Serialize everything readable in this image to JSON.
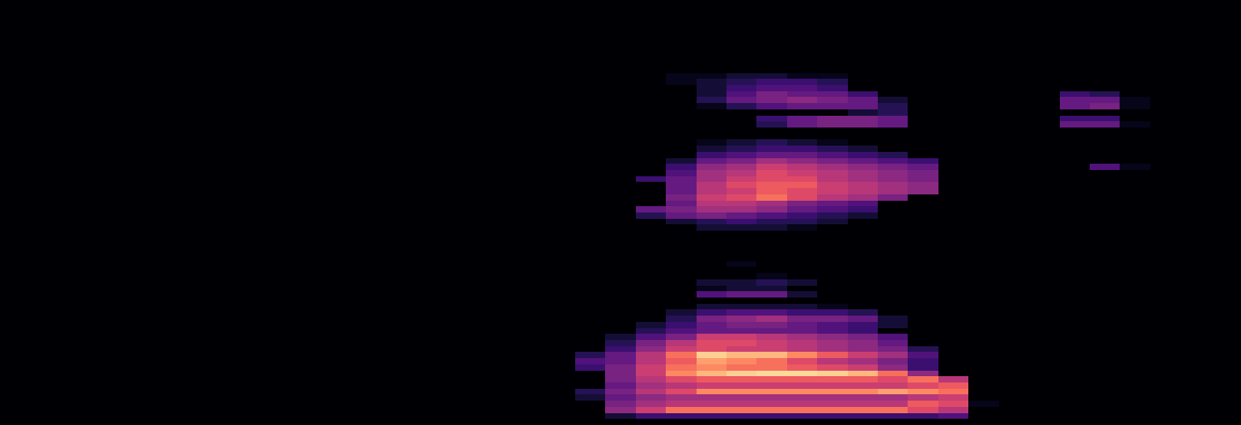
{
  "chart_data": {
    "type": "heatmap",
    "color": "magma",
    "tick_labels": false,
    "xlim": [
      0,
      41
    ],
    "ylim": [
      0,
      70
    ],
    "zlim": [
      0,
      1
    ],
    "x": [
      19.5,
      20.5,
      21.5,
      22.5,
      23.5,
      24.5,
      25.5,
      26.5,
      27.5,
      28.5,
      29.5,
      30.5,
      31.5,
      32.5,
      33.5,
      34.5,
      35.5,
      36.5,
      37.5
    ],
    "y": [
      0.5,
      1.5,
      2.5,
      3.5,
      4.5,
      5.5,
      6.5,
      7.5,
      8.5,
      9.5,
      10.5,
      11.5,
      12.5,
      13.5,
      14.5,
      15.5,
      16.5,
      17.5,
      18.5,
      19.5,
      20.5,
      21.5,
      22.5,
      23.5,
      24.5,
      25.5,
      26.5,
      27.5,
      28.5,
      29.5,
      30.5,
      31.5,
      32.5,
      33.5,
      34.5,
      35.5,
      36.5,
      37.5,
      38.5,
      39.5,
      40.5,
      41.5,
      42.5,
      43.5,
      44.5,
      45.5,
      46.5,
      47.5,
      48.5,
      49.5,
      50.5,
      51.5,
      52.5,
      53.5,
      54.5,
      55.5,
      56.5,
      57.5
    ],
    "z": [
      [
        0,
        0,
        0,
        0,
        0,
        0,
        0,
        0,
        0,
        0,
        0,
        0,
        0,
        0,
        0,
        0,
        0,
        0,
        0
      ],
      [
        0,
        0.1,
        0.2,
        0.2,
        0.2,
        0.2,
        0.2,
        0.2,
        0.2,
        0.2,
        0.2,
        0.2,
        0.25,
        0,
        0,
        0,
        0,
        0,
        0
      ],
      [
        0,
        0.4,
        0.55,
        0.7,
        0.7,
        0.7,
        0.7,
        0.7,
        0.7,
        0.7,
        0.7,
        0.6,
        0.5,
        0,
        0,
        0,
        0,
        0,
        0
      ],
      [
        0,
        0.35,
        0.45,
        0.5,
        0.5,
        0.5,
        0.5,
        0.5,
        0.5,
        0.5,
        0.5,
        0.65,
        0.6,
        0.05,
        0,
        0,
        0,
        0,
        0
      ],
      [
        0.1,
        0.3,
        0.4,
        0.45,
        0.45,
        0.45,
        0.45,
        0.45,
        0.45,
        0.45,
        0.45,
        0.5,
        0.55,
        0,
        0,
        0,
        0,
        0,
        0
      ],
      [
        0.15,
        0.35,
        0.5,
        0.6,
        0.75,
        0.75,
        0.75,
        0.75,
        0.75,
        0.75,
        0.8,
        0.75,
        0.7,
        0,
        0,
        0,
        0,
        0,
        0
      ],
      [
        0,
        0.3,
        0.45,
        0.5,
        0.55,
        0.55,
        0.55,
        0.55,
        0.55,
        0.55,
        0.55,
        0.6,
        0.65,
        0,
        0,
        0,
        0,
        0,
        0
      ],
      [
        0,
        0.35,
        0.5,
        0.6,
        0.65,
        0.65,
        0.65,
        0.65,
        0.65,
        0.65,
        0.6,
        0.7,
        0.5,
        0,
        0,
        0,
        0,
        0,
        0
      ],
      [
        0,
        0.35,
        0.55,
        0.75,
        0.85,
        0.9,
        0.92,
        0.92,
        0.9,
        0.85,
        0.7,
        0.4,
        0,
        0,
        0,
        0,
        0,
        0,
        0
      ],
      [
        0.2,
        0.35,
        0.55,
        0.7,
        0.75,
        0.7,
        0.7,
        0.65,
        0.6,
        0.55,
        0.4,
        0.2,
        0,
        0,
        0,
        0,
        0,
        0,
        0
      ],
      [
        0.25,
        0.3,
        0.5,
        0.65,
        0.8,
        0.75,
        0.7,
        0.6,
        0.5,
        0.45,
        0.35,
        0.2,
        0,
        0,
        0,
        0,
        0,
        0,
        0
      ],
      [
        0.15,
        0.3,
        0.5,
        0.7,
        0.9,
        0.85,
        0.85,
        0.75,
        0.65,
        0.55,
        0.45,
        0.25,
        0,
        0,
        0,
        0,
        0,
        0,
        0
      ],
      [
        0,
        0.2,
        0.4,
        0.55,
        0.6,
        0.55,
        0.55,
        0.5,
        0.45,
        0.4,
        0.35,
        0.15,
        0,
        0,
        0,
        0,
        0,
        0,
        0
      ],
      [
        0,
        0.15,
        0.35,
        0.5,
        0.6,
        0.6,
        0.55,
        0.5,
        0.45,
        0.4,
        0.3,
        0,
        0,
        0,
        0,
        0,
        0,
        0,
        0
      ],
      [
        0,
        0.1,
        0.25,
        0.35,
        0.55,
        0.55,
        0.5,
        0.45,
        0.4,
        0.35,
        0.25,
        0,
        0,
        0,
        0,
        0,
        0,
        0,
        0
      ],
      [
        0,
        0,
        0.15,
        0.25,
        0.3,
        0.3,
        0.3,
        0.3,
        0.25,
        0.2,
        0,
        0,
        0,
        0,
        0,
        0,
        0,
        0,
        0
      ],
      [
        0,
        0,
        0.1,
        0.2,
        0.3,
        0.35,
        0.35,
        0.3,
        0.25,
        0.2,
        0.1,
        0,
        0,
        0,
        0,
        0,
        0,
        0,
        0
      ],
      [
        0,
        0,
        0,
        0.15,
        0.35,
        0.4,
        0.45,
        0.35,
        0.35,
        0.3,
        0.1,
        0,
        0,
        0,
        0,
        0,
        0,
        0,
        0
      ],
      [
        0,
        0,
        0,
        0.1,
        0.2,
        0.25,
        0.25,
        0.2,
        0.2,
        0.15,
        0,
        0,
        0,
        0,
        0,
        0,
        0,
        0,
        0
      ],
      [
        0,
        0,
        0,
        0,
        0.1,
        0.1,
        0.1,
        0.1,
        0.05,
        0,
        0,
        0,
        0,
        0,
        0,
        0,
        0,
        0,
        0
      ],
      [
        0,
        0,
        0,
        0,
        0,
        0,
        0,
        0,
        0,
        0,
        0,
        0,
        0,
        0,
        0,
        0,
        0,
        0,
        0
      ],
      [
        0,
        0,
        0,
        0,
        0.25,
        0.3,
        0.3,
        0.1,
        0,
        0,
        0,
        0,
        0,
        0,
        0,
        0,
        0,
        0,
        0
      ],
      [
        0,
        0,
        0,
        0,
        0.05,
        0.1,
        0.1,
        0,
        0,
        0,
        0,
        0,
        0,
        0,
        0,
        0,
        0,
        0,
        0
      ],
      [
        0,
        0,
        0,
        0,
        0.1,
        0.1,
        0.15,
        0.1,
        0,
        0,
        0,
        0,
        0,
        0,
        0,
        0,
        0,
        0,
        0
      ],
      [
        0,
        0,
        0,
        0,
        0,
        0,
        0.05,
        0,
        0,
        0,
        0,
        0,
        0,
        0,
        0,
        0,
        0,
        0,
        0
      ],
      [
        0,
        0,
        0,
        0,
        0,
        0,
        0,
        0,
        0,
        0,
        0,
        0,
        0,
        0,
        0,
        0,
        0,
        0,
        0
      ],
      [
        0,
        0,
        0,
        0,
        0,
        0.05,
        0,
        0,
        0,
        0,
        0,
        0,
        0,
        0,
        0,
        0,
        0,
        0,
        0
      ],
      [
        0,
        0,
        0,
        0,
        0,
        0,
        0,
        0,
        0,
        0,
        0,
        0,
        0,
        0,
        0,
        0,
        0,
        0,
        0
      ],
      [
        0,
        0,
        0,
        0,
        0,
        0,
        0,
        0,
        0,
        0,
        0,
        0,
        0,
        0,
        0,
        0,
        0,
        0,
        0
      ],
      [
        0,
        0,
        0,
        0,
        0,
        0,
        0,
        0,
        0,
        0,
        0,
        0,
        0,
        0,
        0,
        0,
        0,
        0,
        0
      ],
      [
        0,
        0,
        0,
        0,
        0,
        0,
        0,
        0,
        0,
        0,
        0,
        0,
        0,
        0,
        0,
        0,
        0,
        0,
        0
      ],
      [
        0,
        0,
        0,
        0,
        0,
        0,
        0,
        0,
        0,
        0,
        0,
        0,
        0,
        0,
        0,
        0,
        0,
        0,
        0
      ],
      [
        0,
        0,
        0,
        0,
        0.1,
        0.1,
        0.1,
        0.05,
        0,
        0,
        0,
        0,
        0,
        0,
        0,
        0,
        0,
        0,
        0
      ],
      [
        0,
        0,
        0,
        0.1,
        0.15,
        0.2,
        0.15,
        0.15,
        0.1,
        0,
        0,
        0,
        0,
        0,
        0,
        0,
        0,
        0,
        0
      ],
      [
        0,
        0,
        0.15,
        0.3,
        0.35,
        0.3,
        0.25,
        0.2,
        0.15,
        0.1,
        0,
        0,
        0,
        0,
        0,
        0,
        0,
        0,
        0
      ],
      [
        0,
        0,
        0.3,
        0.35,
        0.45,
        0.45,
        0.4,
        0.3,
        0.25,
        0.2,
        0,
        0,
        0,
        0,
        0,
        0,
        0,
        0,
        0
      ],
      [
        0,
        0,
        0,
        0.3,
        0.5,
        0.5,
        0.45,
        0.35,
        0.3,
        0.25,
        0,
        0,
        0,
        0,
        0,
        0,
        0,
        0,
        0
      ],
      [
        0,
        0,
        0,
        0.35,
        0.55,
        0.6,
        0.7,
        0.6,
        0.5,
        0.45,
        0.35,
        0,
        0,
        0,
        0,
        0,
        0,
        0,
        0
      ],
      [
        0,
        0,
        0,
        0.3,
        0.5,
        0.55,
        0.65,
        0.6,
        0.55,
        0.5,
        0.45,
        0.4,
        0,
        0,
        0,
        0,
        0,
        0,
        0
      ],
      [
        0,
        0,
        0,
        0.3,
        0.5,
        0.6,
        0.65,
        0.65,
        0.55,
        0.5,
        0.45,
        0.4,
        0,
        0,
        0,
        0,
        0,
        0,
        0
      ],
      [
        0,
        0,
        0.2,
        0.3,
        0.45,
        0.55,
        0.6,
        0.6,
        0.5,
        0.45,
        0.4,
        0.35,
        0,
        0,
        0,
        0,
        0,
        0,
        0
      ],
      [
        0,
        0,
        0,
        0.25,
        0.45,
        0.5,
        0.6,
        0.55,
        0.5,
        0.45,
        0.4,
        0.35,
        0,
        0,
        0,
        0,
        0,
        0,
        0
      ],
      [
        0,
        0,
        0,
        0.2,
        0.4,
        0.45,
        0.55,
        0.5,
        0.45,
        0.4,
        0.35,
        0.3,
        0,
        0,
        0,
        0,
        0,
        0.25,
        0.05
      ],
      [
        0,
        0,
        0,
        0.1,
        0.3,
        0.35,
        0.45,
        0.4,
        0.35,
        0.3,
        0.25,
        0.2,
        0,
        0,
        0,
        0,
        0,
        0,
        0
      ],
      [
        0,
        0,
        0,
        0,
        0.2,
        0.25,
        0.3,
        0.3,
        0.25,
        0.2,
        0.15,
        0,
        0,
        0,
        0,
        0,
        0,
        0,
        0
      ],
      [
        0,
        0,
        0,
        0,
        0.1,
        0.15,
        0.2,
        0.2,
        0.15,
        0.1,
        0,
        0,
        0,
        0,
        0,
        0,
        0,
        0,
        0
      ],
      [
        0,
        0,
        0,
        0,
        0.05,
        0.1,
        0.15,
        0.1,
        0.05,
        0,
        0,
        0,
        0,
        0,
        0,
        0,
        0,
        0,
        0
      ],
      [
        0,
        0,
        0,
        0,
        0,
        0,
        0,
        0,
        0,
        0,
        0,
        0,
        0,
        0,
        0,
        0,
        0,
        0,
        0
      ],
      [
        0,
        0,
        0,
        0,
        0,
        0,
        0,
        0,
        0,
        0,
        0,
        0,
        0,
        0,
        0,
        0,
        0,
        0,
        0
      ],
      [
        0,
        0,
        0,
        0,
        0,
        0,
        0.15,
        0.3,
        0.35,
        0.35,
        0.3,
        0,
        0,
        0,
        0,
        0,
        0.3,
        0.3,
        0.05
      ],
      [
        0,
        0,
        0,
        0,
        0,
        0,
        0.2,
        0.3,
        0.35,
        0.35,
        0.3,
        0,
        0,
        0,
        0,
        0,
        0.2,
        0.2,
        0
      ],
      [
        0,
        0,
        0,
        0,
        0,
        0,
        0,
        0,
        0,
        0.1,
        0.15,
        0,
        0,
        0,
        0,
        0,
        0,
        0,
        0
      ],
      [
        0,
        0,
        0,
        0,
        0.05,
        0.15,
        0.25,
        0.3,
        0.3,
        0.3,
        0.15,
        0,
        0,
        0,
        0,
        0,
        0.3,
        0.35,
        0.05
      ],
      [
        0,
        0,
        0,
        0,
        0.15,
        0.3,
        0.35,
        0.4,
        0.35,
        0.3,
        0.1,
        0,
        0,
        0,
        0,
        0,
        0.3,
        0.3,
        0.05
      ],
      [
        0,
        0,
        0,
        0,
        0.1,
        0.25,
        0.35,
        0.3,
        0.3,
        0.2,
        0,
        0,
        0,
        0,
        0,
        0,
        0.2,
        0.15,
        0
      ],
      [
        0,
        0,
        0,
        0,
        0.1,
        0.2,
        0.25,
        0.25,
        0.2,
        0,
        0,
        0,
        0,
        0,
        0,
        0,
        0,
        0,
        0
      ],
      [
        0,
        0,
        0,
        0.05,
        0.1,
        0.15,
        0.2,
        0.2,
        0.15,
        0,
        0,
        0,
        0,
        0,
        0,
        0,
        0,
        0,
        0
      ],
      [
        0,
        0,
        0,
        0.05,
        0.05,
        0.1,
        0.1,
        0.05,
        0.05,
        0,
        0,
        0,
        0,
        0,
        0,
        0,
        0,
        0,
        0
      ]
    ]
  }
}
